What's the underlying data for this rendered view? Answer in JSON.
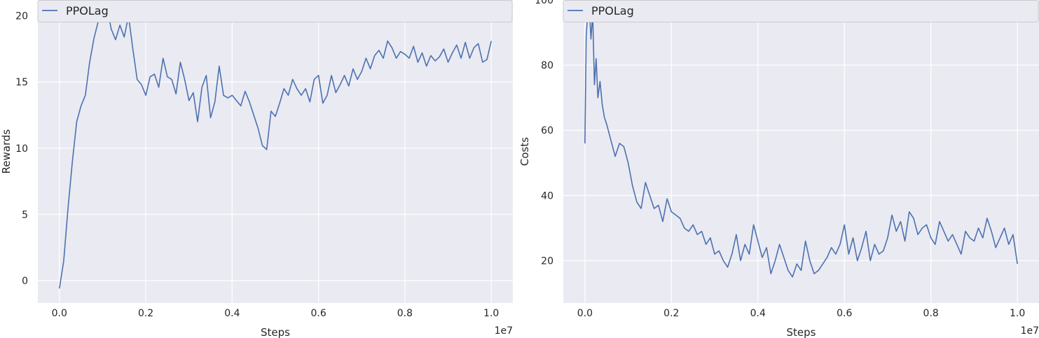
{
  "chart_data": [
    {
      "type": "line",
      "xlabel": "Steps",
      "ylabel": "Rewards",
      "x_offset_label": "1e7",
      "xlim": [
        -0.05,
        1.05
      ],
      "ylim": [
        -1.7,
        21.2
      ],
      "xticks": [
        0.0,
        0.2,
        0.4,
        0.6,
        0.8,
        1.0
      ],
      "xtick_labels": [
        "0.0",
        "0.2",
        "0.4",
        "0.6",
        "0.8",
        "1.0"
      ],
      "yticks": [
        0,
        5,
        10,
        15,
        20
      ],
      "ytick_labels": [
        "0",
        "5",
        "10",
        "15",
        "20"
      ],
      "grid": true,
      "legend_position": "top-left",
      "series": [
        {
          "name": "PPOLag",
          "color": "#4c72b0",
          "x": [
            0.0,
            0.01,
            0.02,
            0.03,
            0.04,
            0.05,
            0.06,
            0.07,
            0.08,
            0.09,
            0.1,
            0.11,
            0.12,
            0.13,
            0.14,
            0.15,
            0.16,
            0.17,
            0.18,
            0.19,
            0.2,
            0.21,
            0.22,
            0.23,
            0.24,
            0.25,
            0.26,
            0.27,
            0.28,
            0.29,
            0.3,
            0.31,
            0.32,
            0.33,
            0.34,
            0.35,
            0.36,
            0.37,
            0.38,
            0.39,
            0.4,
            0.41,
            0.42,
            0.43,
            0.44,
            0.45,
            0.46,
            0.47,
            0.48,
            0.49,
            0.5,
            0.51,
            0.52,
            0.53,
            0.54,
            0.55,
            0.56,
            0.57,
            0.58,
            0.59,
            0.6,
            0.61,
            0.62,
            0.63,
            0.64,
            0.65,
            0.66,
            0.67,
            0.68,
            0.69,
            0.7,
            0.71,
            0.72,
            0.73,
            0.74,
            0.75,
            0.76,
            0.77,
            0.78,
            0.79,
            0.8,
            0.81,
            0.82,
            0.83,
            0.84,
            0.85,
            0.86,
            0.87,
            0.88,
            0.89,
            0.9,
            0.91,
            0.92,
            0.93,
            0.94,
            0.95,
            0.96,
            0.97,
            0.98,
            0.99,
            1.0
          ],
          "values": [
            -0.6,
            1.5,
            5.5,
            9.0,
            12.0,
            13.2,
            14.0,
            16.5,
            18.3,
            19.6,
            20.2,
            20.6,
            19.0,
            18.2,
            19.3,
            18.4,
            20.0,
            17.5,
            15.2,
            14.8,
            14.0,
            15.4,
            15.6,
            14.6,
            16.8,
            15.4,
            15.2,
            14.1,
            16.5,
            15.2,
            13.6,
            14.2,
            12.0,
            14.6,
            15.5,
            12.3,
            13.5,
            16.2,
            14.0,
            13.8,
            14.0,
            13.6,
            13.2,
            14.3,
            13.5,
            12.5,
            11.5,
            10.2,
            9.9,
            12.8,
            12.4,
            13.4,
            14.5,
            14.0,
            15.2,
            14.5,
            14.0,
            14.5,
            13.5,
            15.2,
            15.5,
            13.4,
            14.0,
            15.5,
            14.2,
            14.8,
            15.5,
            14.7,
            16.0,
            15.2,
            15.8,
            16.8,
            16.0,
            17.0,
            17.4,
            16.8,
            18.1,
            17.6,
            16.8,
            17.3,
            17.1,
            16.8,
            17.7,
            16.5,
            17.2,
            16.2,
            17.0,
            16.6,
            16.9,
            17.5,
            16.5,
            17.2,
            17.8,
            16.8,
            18.0,
            16.8,
            17.6,
            17.9,
            16.5,
            16.7,
            18.1
          ]
        }
      ]
    },
    {
      "type": "line",
      "xlabel": "Steps",
      "ylabel": "Costs",
      "x_offset_label": "1e7",
      "xlim": [
        -0.05,
        1.05
      ],
      "ylim": [
        7,
        100
      ],
      "xticks": [
        0.0,
        0.2,
        0.4,
        0.6,
        0.8,
        1.0
      ],
      "xtick_labels": [
        "0.0",
        "0.2",
        "0.4",
        "0.6",
        "0.8",
        "1.0"
      ],
      "yticks": [
        20,
        40,
        60,
        80,
        100
      ],
      "ytick_labels": [
        "20",
        "40",
        "60",
        "80",
        "100"
      ],
      "grid": true,
      "legend_position": "top-left",
      "series": [
        {
          "name": "PPOLag",
          "color": "#4c72b0",
          "x": [
            0.0,
            0.003,
            0.006,
            0.01,
            0.014,
            0.018,
            0.022,
            0.026,
            0.03,
            0.035,
            0.04,
            0.045,
            0.05,
            0.06,
            0.07,
            0.08,
            0.09,
            0.1,
            0.11,
            0.12,
            0.13,
            0.14,
            0.15,
            0.16,
            0.17,
            0.18,
            0.19,
            0.2,
            0.21,
            0.22,
            0.23,
            0.24,
            0.25,
            0.26,
            0.27,
            0.28,
            0.29,
            0.3,
            0.31,
            0.32,
            0.33,
            0.34,
            0.35,
            0.36,
            0.37,
            0.38,
            0.39,
            0.4,
            0.41,
            0.42,
            0.43,
            0.44,
            0.45,
            0.46,
            0.47,
            0.48,
            0.49,
            0.5,
            0.51,
            0.52,
            0.53,
            0.54,
            0.55,
            0.56,
            0.57,
            0.58,
            0.59,
            0.6,
            0.61,
            0.62,
            0.63,
            0.64,
            0.65,
            0.66,
            0.67,
            0.68,
            0.69,
            0.7,
            0.71,
            0.72,
            0.73,
            0.74,
            0.75,
            0.76,
            0.77,
            0.78,
            0.79,
            0.8,
            0.81,
            0.82,
            0.83,
            0.84,
            0.85,
            0.86,
            0.87,
            0.88,
            0.89,
            0.9,
            0.91,
            0.92,
            0.93,
            0.94,
            0.95,
            0.96,
            0.97,
            0.98,
            0.99,
            1.0
          ],
          "values": [
            56,
            89,
            95,
            98,
            88,
            96,
            74,
            82,
            70,
            75,
            68,
            64,
            62,
            57,
            52,
            56,
            55,
            50,
            43,
            38,
            36,
            44,
            40,
            36,
            37,
            32,
            39,
            35,
            34,
            33,
            30,
            29,
            31,
            28,
            29,
            25,
            27,
            22,
            23,
            20,
            18,
            22,
            28,
            20,
            25,
            22,
            31,
            26,
            21,
            24,
            16,
            20,
            25,
            21,
            17,
            15,
            19,
            17,
            26,
            20,
            16,
            17,
            19,
            21,
            24,
            22,
            25,
            31,
            22,
            27,
            20,
            24,
            29,
            20,
            25,
            22,
            23,
            27,
            34,
            29,
            32,
            26,
            35,
            33,
            28,
            30,
            31,
            27,
            25,
            32,
            29,
            26,
            28,
            25,
            22,
            29,
            27,
            26,
            30,
            27,
            33,
            29,
            24,
            27,
            30,
            25,
            28,
            19
          ]
        }
      ]
    }
  ]
}
